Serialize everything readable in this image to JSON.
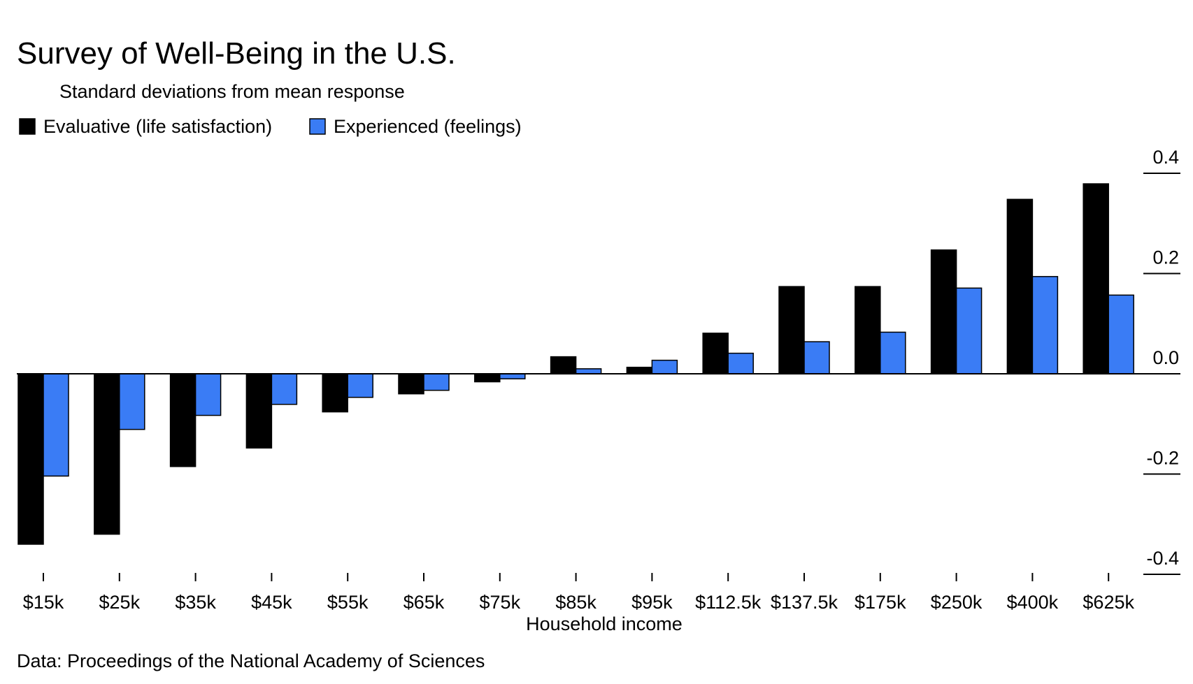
{
  "chart_data": {
    "type": "bar",
    "title": "Survey of Well-Being in the U.S.",
    "subtitle": "Standard deviations from mean response",
    "xlabel": "Household income",
    "ylabel": "",
    "source": "Data: Proceedings of the National Academy of Sciences",
    "categories": [
      "$15k",
      "$25k",
      "$35k",
      "$45k",
      "$55k",
      "$65k",
      "$75k",
      "$85k",
      "$95k",
      "$112.5k",
      "$137.5k",
      "$175k",
      "$250k",
      "$400k",
      "$625k"
    ],
    "series": [
      {
        "name": "Evaluative (life satisfaction)",
        "color": "#000000",
        "values": [
          -0.34,
          -0.32,
          -0.185,
          -0.148,
          -0.076,
          -0.04,
          -0.016,
          0.034,
          0.013,
          0.081,
          0.174,
          0.174,
          0.247,
          0.348,
          0.379
        ]
      },
      {
        "name": "Experienced (feelings)",
        "color": "#3a7cf5",
        "values": [
          -0.204,
          -0.111,
          -0.083,
          -0.061,
          -0.047,
          -0.033,
          -0.01,
          0.01,
          0.027,
          0.041,
          0.064,
          0.083,
          0.171,
          0.194,
          0.157
        ]
      }
    ],
    "ylim": [
      -0.4,
      0.4
    ],
    "yticks": [
      0.4,
      0.2,
      0.0,
      -0.2,
      -0.4
    ],
    "ytick_labels": [
      "0.4",
      "0.2",
      "0.0",
      "-0.2",
      "-0.4"
    ],
    "y_axis_position": "right",
    "legend_position": "top-left",
    "grid": false
  }
}
